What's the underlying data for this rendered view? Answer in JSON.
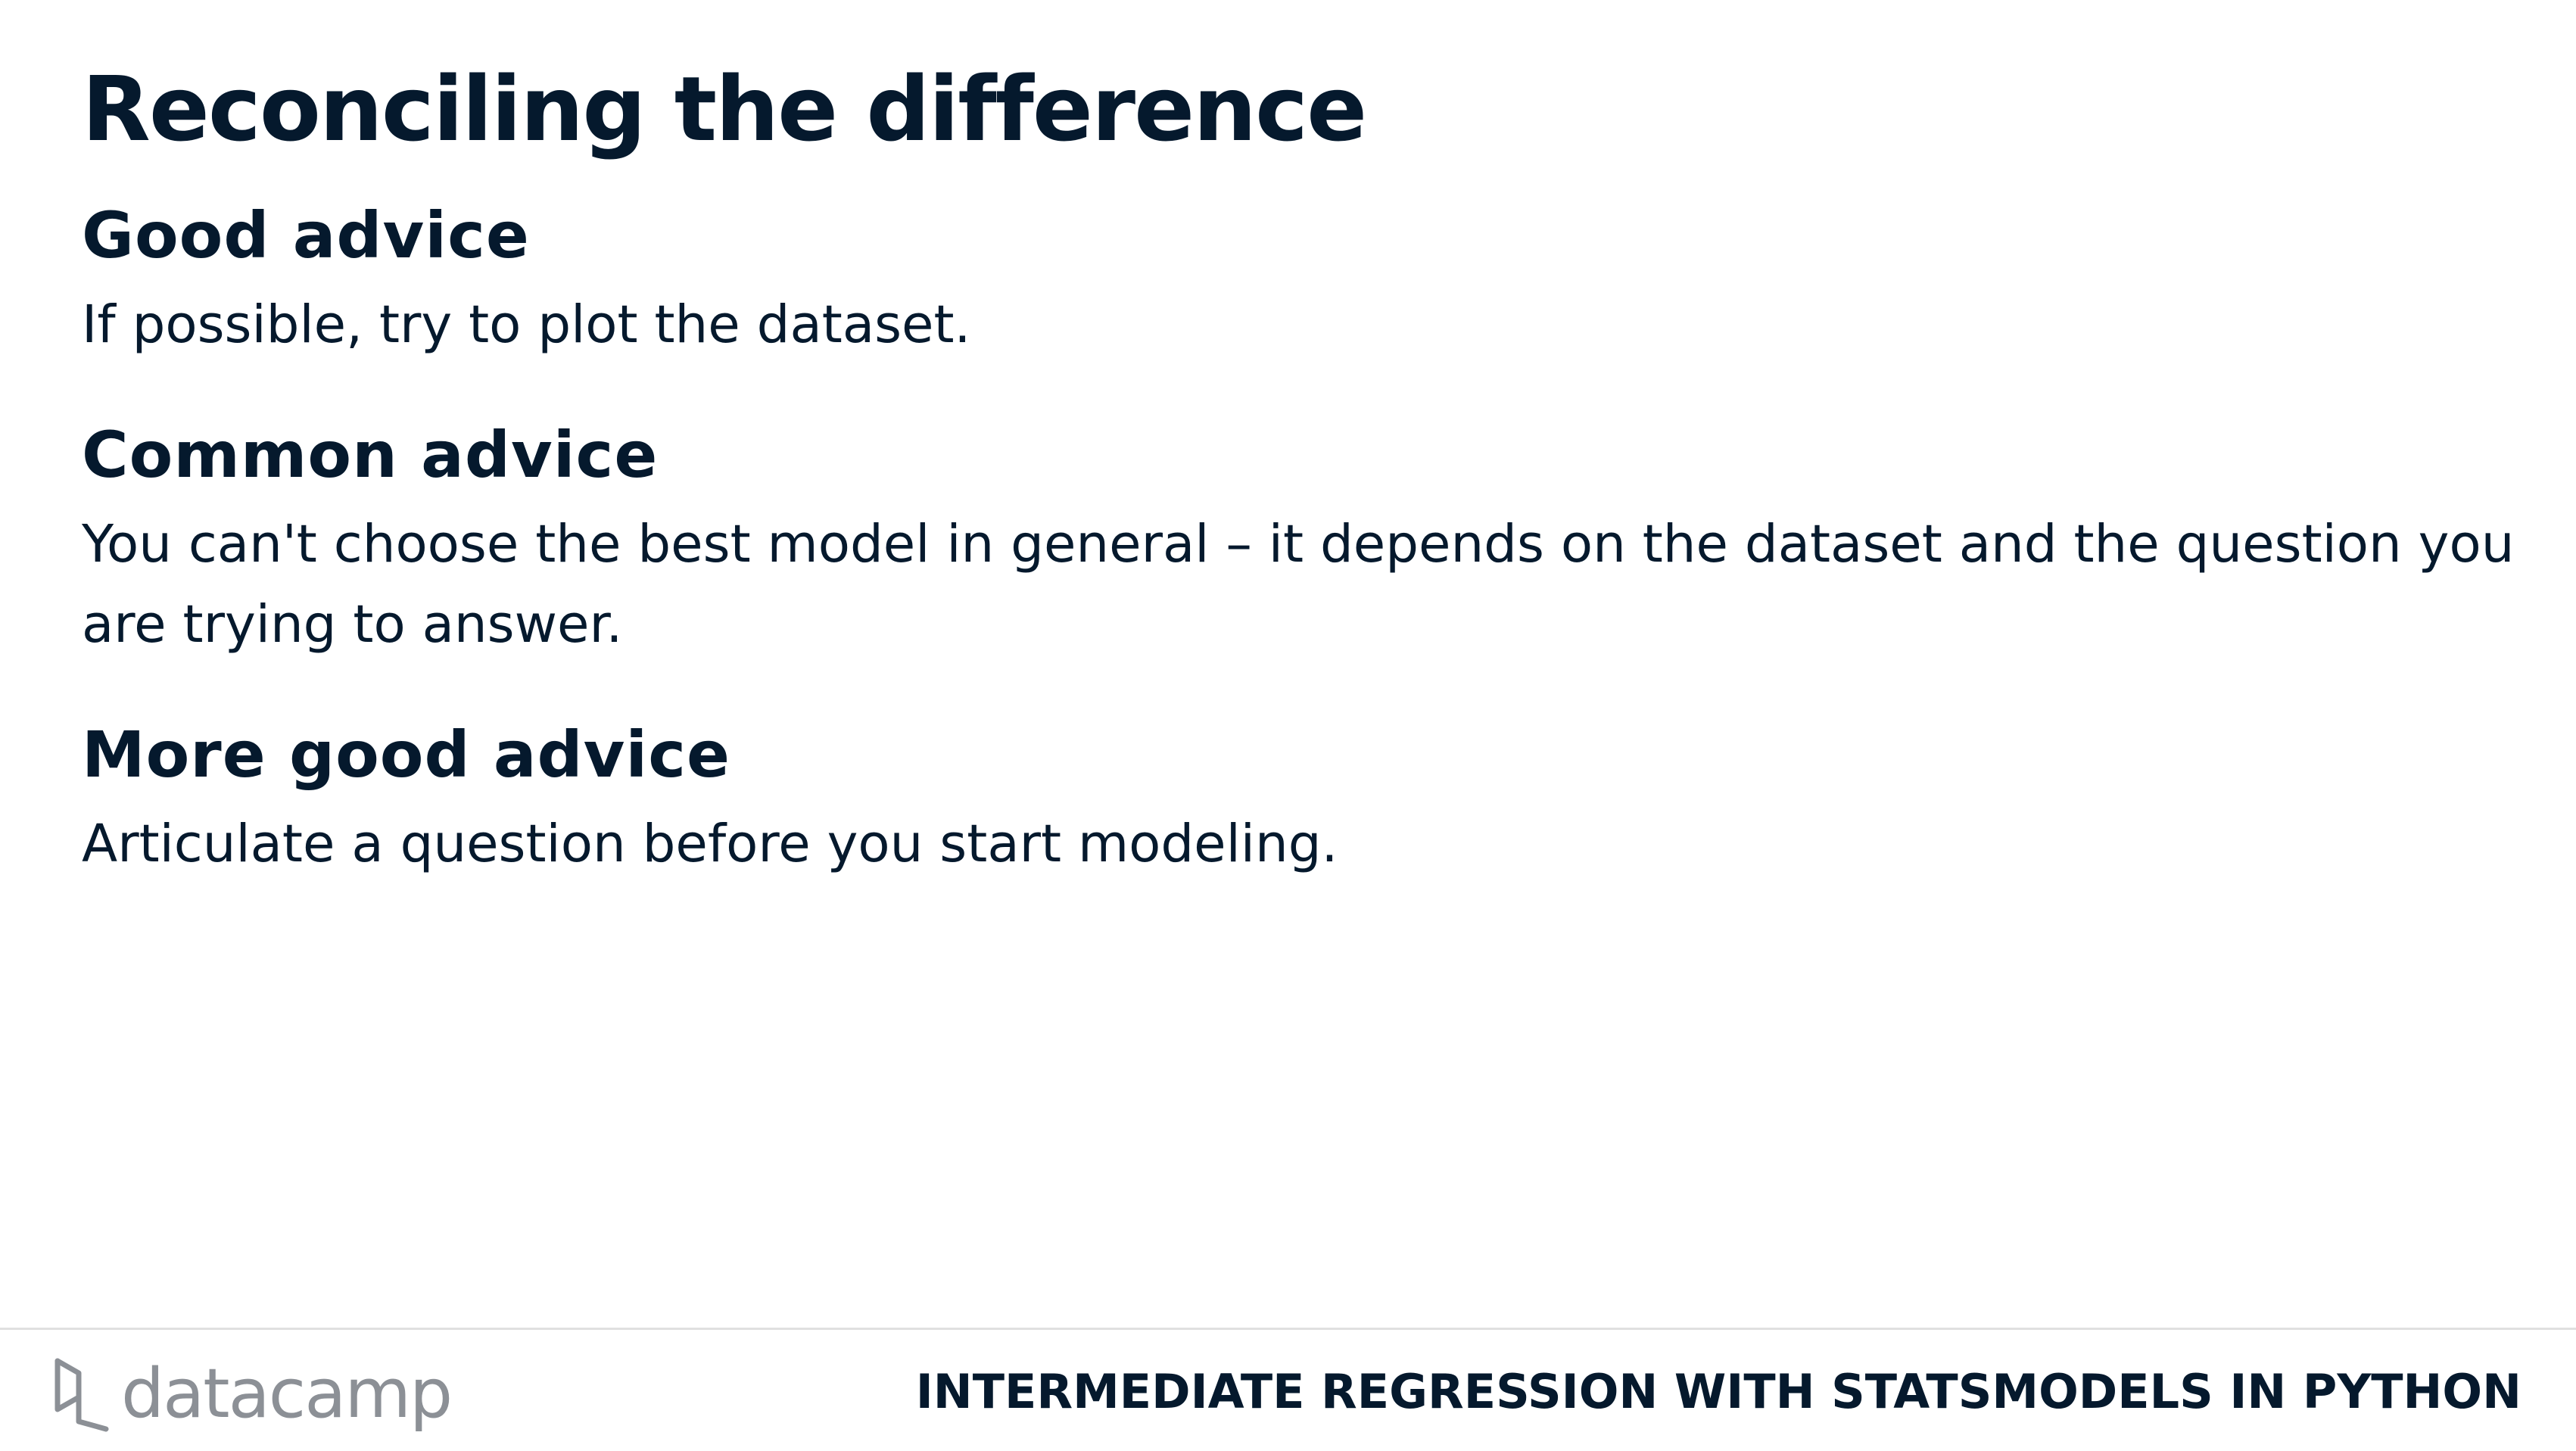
{
  "slide": {
    "title": "Reconciling the difference"
  },
  "sections": [
    {
      "heading": "Good advice",
      "body": "If possible, try to plot the dataset."
    },
    {
      "heading": "Common advice",
      "body": "You can't choose the best model in general – it depends on the dataset and the question you are trying to answer."
    },
    {
      "heading": "More good advice",
      "body": "Articulate a question before you start modeling."
    }
  ],
  "footer": {
    "logo_text": "datacamp",
    "logo_icon": "datacamp-logo-icon",
    "course_title": "INTERMEDIATE REGRESSION WITH STATSMODELS IN PYTHON"
  },
  "colors": {
    "text": "#05192d",
    "logo": "#8c9096",
    "rule": "#e0e0e0",
    "background": "#ffffff"
  }
}
